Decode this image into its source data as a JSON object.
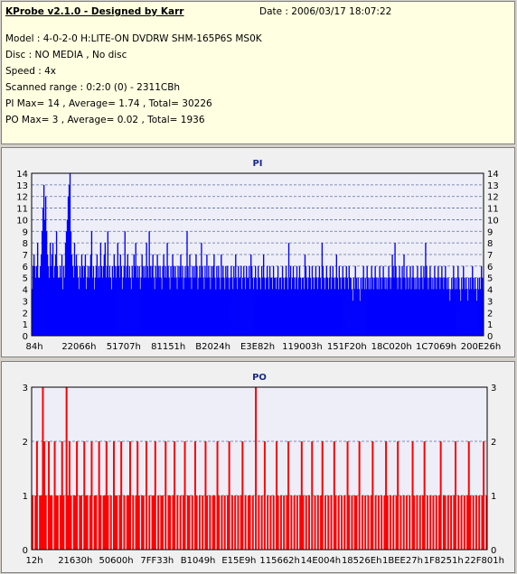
{
  "header": {
    "title": "KProbe v2.1.0 - Designed by Karr",
    "date": "Date : 2006/03/17 18:07:22",
    "model": "Model : 4-0-2-0 H:LITE-ON DVDRW SHM-165P6S MS0K",
    "disc": "Disc : NO MEDIA , No disc",
    "speed": "Speed : 4x",
    "range": "Scanned range : 0:2:0 (0) - 2311CBh",
    "pi_summary": "PI Max= 14 , Average= 1.74 , Total= 30226",
    "po_summary": "PO Max= 3 , Average= 0.02 , Total= 1936"
  },
  "colors": {
    "pi": "#0000ff",
    "po": "#ff0000",
    "grid": "#6070a0",
    "plot_bg": "#eeeef8",
    "title": "#1a2a8a"
  },
  "chart_data": [
    {
      "type": "bar",
      "title": "PI",
      "ylim": [
        0,
        14
      ],
      "yticks": [
        "0",
        "1",
        "2",
        "3",
        "4",
        "5",
        "6",
        "7",
        "8",
        "9",
        "10",
        "11",
        "12",
        "13",
        "14"
      ],
      "xticks": [
        "84h",
        "22066h",
        "51707h",
        "81151h",
        "B2024h",
        "E3E82h",
        "119003h",
        "151F20h",
        "18C020h",
        "1C7069h",
        "200E26h"
      ],
      "grid": true,
      "values": [
        4,
        6,
        7,
        6,
        5,
        6,
        8,
        5,
        5,
        6,
        7,
        9,
        11,
        13,
        10,
        12,
        9,
        7,
        6,
        5,
        8,
        6,
        7,
        8,
        5,
        6,
        7,
        9,
        6,
        5,
        5,
        6,
        5,
        7,
        4,
        6,
        5,
        8,
        9,
        10,
        12,
        13,
        14,
        9,
        7,
        6,
        5,
        8,
        6,
        7,
        6,
        5,
        4,
        6,
        5,
        7,
        6,
        5,
        6,
        7,
        4,
        5,
        6,
        5,
        6,
        7,
        9,
        5,
        6,
        4,
        5,
        6,
        7,
        5,
        6,
        5,
        8,
        6,
        5,
        6,
        7,
        8,
        5,
        6,
        9,
        5,
        6,
        5,
        4,
        6,
        5,
        7,
        6,
        5,
        6,
        8,
        6,
        5,
        7,
        6,
        4,
        5,
        6,
        9,
        5,
        6,
        7,
        5,
        6,
        5,
        4,
        6,
        5,
        7,
        6,
        8,
        5,
        6,
        5,
        6,
        4,
        5,
        7,
        6,
        5,
        6,
        5,
        8,
        6,
        5,
        9,
        6,
        5,
        6,
        7,
        5,
        4,
        6,
        5,
        7,
        6,
        5,
        6,
        5,
        4,
        6,
        7,
        5,
        6,
        5,
        8,
        6,
        5,
        4,
        6,
        5,
        7,
        6,
        5,
        6,
        5,
        4,
        6,
        5,
        6,
        7,
        5,
        6,
        4,
        5,
        6,
        5,
        9,
        6,
        5,
        7,
        5,
        4,
        6,
        5,
        6,
        5,
        7,
        6,
        4,
        5,
        6,
        5,
        8,
        6,
        5,
        4,
        6,
        5,
        7,
        5,
        6,
        5,
        4,
        6,
        5,
        6,
        7,
        5,
        4,
        6,
        5,
        6,
        5,
        4,
        7,
        5,
        6,
        5,
        4,
        6,
        5,
        6,
        5,
        4,
        5,
        6,
        5,
        4,
        6,
        5,
        7,
        5,
        4,
        6,
        5,
        5,
        6,
        4,
        5,
        6,
        5,
        4,
        6,
        5,
        5,
        6,
        4,
        7,
        6,
        5,
        4,
        5,
        6,
        5,
        4,
        6,
        5,
        5,
        4,
        6,
        5,
        7,
        5,
        4,
        5,
        6,
        5,
        4,
        6,
        5,
        5,
        4,
        6,
        5,
        5,
        4,
        5,
        6,
        4,
        5,
        5,
        4,
        6,
        5,
        4,
        5,
        6,
        5,
        4,
        8,
        5,
        6,
        4,
        5,
        6,
        5,
        4,
        5,
        6,
        4,
        5,
        6,
        5,
        4,
        5,
        5,
        4,
        7,
        6,
        5,
        4,
        5,
        6,
        5,
        4,
        6,
        5,
        4,
        5,
        6,
        5,
        4,
        5,
        6,
        5,
        4,
        8,
        6,
        5,
        4,
        5,
        6,
        5,
        4,
        5,
        6,
        4,
        5,
        6,
        5,
        4,
        5,
        7,
        5,
        4,
        6,
        5,
        4,
        5,
        6,
        5,
        4,
        5,
        6,
        5,
        4,
        6,
        5,
        5,
        4,
        3,
        5,
        4,
        6,
        5,
        4,
        5,
        4,
        3,
        5,
        4,
        5,
        6,
        4,
        5,
        4,
        6,
        5,
        4,
        5,
        4,
        6,
        5,
        4,
        5,
        6,
        5,
        4,
        5,
        4,
        6,
        5,
        4,
        5,
        6,
        5,
        4,
        5,
        4,
        5,
        6,
        5,
        4,
        5,
        7,
        6,
        5,
        8,
        6,
        5,
        4,
        5,
        6,
        5,
        4,
        6,
        5,
        7,
        5,
        4,
        6,
        5,
        4,
        5,
        6,
        4,
        5,
        6,
        5,
        4,
        5,
        4,
        6,
        5,
        4,
        5,
        6,
        5,
        4,
        6,
        5,
        8,
        6,
        5,
        4,
        5,
        6,
        5,
        4,
        5,
        4,
        6,
        5,
        4,
        5,
        6,
        5,
        4,
        5,
        6,
        5,
        4,
        5,
        6,
        5,
        4,
        5,
        4,
        3,
        4,
        5,
        4,
        6,
        5,
        4,
        5,
        4,
        6,
        5,
        4,
        3,
        5,
        4,
        6,
        5,
        4,
        5,
        4,
        3,
        5,
        4,
        5,
        4,
        6,
        5,
        4,
        5,
        4,
        3,
        5,
        4,
        5,
        4,
        6,
        5,
        4
      ]
    },
    {
      "type": "bar",
      "title": "PO",
      "ylim": [
        0,
        3
      ],
      "yticks": [
        "0",
        "1",
        "2",
        "3"
      ],
      "xticks": [
        "12h",
        "21630h",
        "50600h",
        "7FF33h",
        "B1049h",
        "E15E9h",
        "115662h",
        "14E004h",
        "18526Eh",
        "1BEE27h",
        "1F8251h",
        "22F801h"
      ],
      "grid": true,
      "values": [
        1,
        0,
        1,
        2,
        0,
        1,
        1,
        3,
        2,
        1,
        0,
        2,
        1,
        1,
        0,
        2,
        1,
        1,
        0,
        1,
        2,
        1,
        0,
        3,
        1,
        2,
        1,
        0,
        1,
        1,
        2,
        0,
        1,
        1,
        0,
        2,
        1,
        1,
        0,
        1,
        2,
        0,
        1,
        1,
        0,
        2,
        1,
        0,
        1,
        1,
        2,
        1,
        0,
        1,
        0,
        2,
        1,
        1,
        0,
        1,
        2,
        0,
        1,
        0,
        1,
        1,
        2,
        0,
        1,
        0,
        1,
        2,
        1,
        0,
        1,
        1,
        0,
        2,
        0,
        1,
        0,
        1,
        1,
        2,
        0,
        1,
        0,
        1,
        1,
        0,
        2,
        0,
        1,
        1,
        0,
        1,
        2,
        0,
        1,
        0,
        1,
        0,
        1,
        2,
        0,
        1,
        1,
        0,
        1,
        0,
        2,
        1,
        0,
        1,
        0,
        1,
        0,
        2,
        1,
        0,
        1,
        0,
        1,
        1,
        0,
        2,
        1,
        0,
        1,
        0,
        1,
        0,
        1,
        2,
        0,
        1,
        0,
        1,
        0,
        1,
        0,
        1,
        2,
        0,
        1,
        0,
        1,
        1,
        0,
        1,
        0,
        3,
        0,
        1,
        0,
        1,
        0,
        2,
        0,
        1,
        0,
        1,
        0,
        1,
        0,
        2,
        1,
        0,
        1,
        0,
        1,
        0,
        1,
        2,
        0,
        1,
        0,
        1,
        0,
        1,
        0,
        1,
        2,
        1,
        0,
        1,
        0,
        1,
        0,
        2,
        0,
        1,
        0,
        1,
        0,
        1,
        2,
        0,
        1,
        0,
        1,
        0,
        1,
        0,
        2,
        1,
        0,
        1,
        0,
        1,
        0,
        1,
        0,
        2,
        1,
        0,
        1,
        0,
        1,
        1,
        0,
        2,
        0,
        1,
        0,
        1,
        0,
        1,
        0,
        1,
        2,
        0,
        1,
        0,
        1,
        0,
        1,
        0,
        1,
        2,
        1,
        0,
        1,
        0,
        1,
        0,
        1,
        2,
        0,
        1,
        0,
        1,
        0,
        1,
        0,
        1,
        0,
        2,
        1,
        0,
        1,
        0,
        1,
        0,
        1,
        2,
        0,
        1,
        0,
        1,
        0,
        1,
        0,
        1,
        0,
        1,
        2,
        0,
        1,
        1,
        0,
        1,
        0,
        1,
        0,
        1,
        2,
        0,
        1,
        0,
        1,
        0,
        1,
        0,
        1,
        2,
        1,
        0,
        1,
        0,
        1,
        0,
        1,
        0,
        1,
        2,
        0,
        1
      ]
    }
  ]
}
